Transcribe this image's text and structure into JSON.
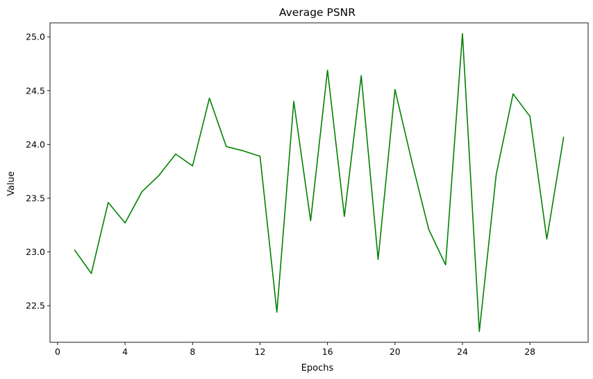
{
  "chart_data": {
    "type": "line",
    "title": "Average PSNR",
    "xlabel": "Epochs",
    "ylabel": "Value",
    "xlim": [
      -0.45,
      31.45
    ],
    "ylim": [
      22.16,
      25.13
    ],
    "xticks": [
      0,
      4,
      8,
      12,
      16,
      20,
      24,
      28
    ],
    "yticks": [
      22.5,
      23.0,
      23.5,
      24.0,
      24.5,
      25.0
    ],
    "ytick_labels": [
      "22.5",
      "23.0",
      "23.5",
      "24.0",
      "24.5",
      "25.0"
    ],
    "grid": false,
    "legend": "none",
    "series": [
      {
        "color": "#008000",
        "x": [
          1,
          2,
          3,
          4,
          5,
          6,
          7,
          8,
          9,
          10,
          11,
          12,
          13,
          14,
          15,
          16,
          17,
          18,
          19,
          20,
          21,
          22,
          23,
          24,
          25,
          26,
          27,
          28,
          29,
          30
        ],
        "y": [
          23.02,
          22.8,
          23.46,
          23.27,
          23.56,
          23.71,
          23.91,
          23.8,
          24.43,
          23.98,
          23.94,
          23.89,
          22.44,
          24.4,
          23.29,
          24.69,
          23.33,
          24.64,
          22.93,
          24.51,
          23.84,
          23.21,
          22.88,
          25.03,
          22.26,
          23.72,
          24.47,
          24.26,
          23.12,
          24.07
        ]
      }
    ]
  }
}
